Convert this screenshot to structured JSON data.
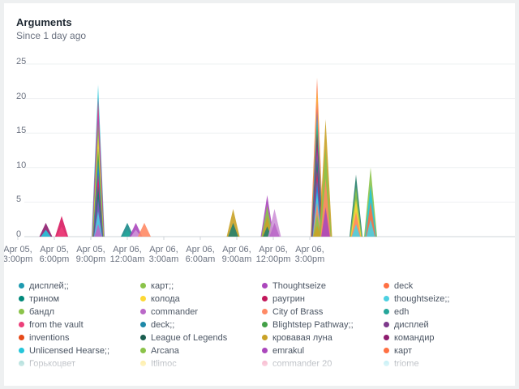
{
  "panel": {
    "title": "Arguments",
    "subtitle": "Since 1 day ago"
  },
  "chart_data": {
    "type": "area",
    "title": "Arguments",
    "subtitle": "Since 1 day ago",
    "ylim": [
      0,
      25
    ],
    "y_ticks": [
      "25",
      "20",
      "15",
      "10",
      "5",
      "0"
    ],
    "x_ticks": [
      {
        "line1": "Apr 05,",
        "line2": "3:00pm"
      },
      {
        "line1": "Apr 05,",
        "line2": "6:00pm"
      },
      {
        "line1": "Apr 05,",
        "line2": "9:00pm"
      },
      {
        "line1": "Apr 06,",
        "line2": "12:00am"
      },
      {
        "line1": "Apr 06,",
        "line2": "3:00am"
      },
      {
        "line1": "Apr 06,",
        "line2": "6:00am"
      },
      {
        "line1": "Apr 06,",
        "line2": "9:00am"
      },
      {
        "line1": "Apr 06,",
        "line2": "12:00pm"
      },
      {
        "line1": "Apr 06,",
        "line2": "3:00pm"
      }
    ],
    "grid": true,
    "peaks": [
      {
        "at_hours": 4.3,
        "total": 2,
        "colors": [
          "#8e1d6f",
          "#26c6da"
        ]
      },
      {
        "at_hours": 5.6,
        "total": 3,
        "colors": [
          "#d81b60",
          "#ec407a"
        ]
      },
      {
        "at_hours": 8.6,
        "total": 22,
        "colors": [
          "#26c6da",
          "#ec407a",
          "#ab47bc",
          "#8bc34a",
          "#fdd835",
          "#43a047",
          "#1e88e5",
          "#e91e63",
          "#00897b",
          "#7e57c2",
          "#4dd0e1",
          "#ba68c8"
        ]
      },
      {
        "at_hours": 11.0,
        "total": 2,
        "colors": [
          "#1a8a8a",
          "#26a69a"
        ]
      },
      {
        "at_hours": 11.7,
        "total": 2,
        "colors": [
          "#ab47bc",
          "#ce93d8"
        ]
      },
      {
        "at_hours": 12.4,
        "total": 2,
        "colors": [
          "#ff8a65"
        ]
      },
      {
        "at_hours": 19.7,
        "total": 4,
        "colors": [
          "#c9a227",
          "#26806b"
        ]
      },
      {
        "at_hours": 22.5,
        "total": 6,
        "colors": [
          "#ab47bc",
          "#8bc34a",
          "#c9a227",
          "#26806b"
        ]
      },
      {
        "at_hours": 23.1,
        "total": 4,
        "colors": [
          "#ce93d8",
          "#ba68c8"
        ]
      },
      {
        "at_hours": 26.6,
        "total": 23,
        "colors": [
          "#ff7043",
          "#fdd835",
          "#ec407a",
          "#26c6da",
          "#43a047",
          "#8e1d6f",
          "#ab47bc",
          "#00897b",
          "#e91e63",
          "#1e88e5",
          "#4dd0e1",
          "#ff8a65",
          "#8bc34a",
          "#c9a227"
        ]
      },
      {
        "at_hours": 27.3,
        "total": 17,
        "colors": [
          "#c9a227",
          "#8bc34a",
          "#ff8a65",
          "#ab47bc"
        ]
      },
      {
        "at_hours": 29.8,
        "total": 9,
        "colors": [
          "#26806b",
          "#8bc34a",
          "#fdd835",
          "#ff8a65",
          "#4dd0e1"
        ]
      },
      {
        "at_hours": 31.0,
        "total": 10,
        "colors": [
          "#8bc34a",
          "#26c6da",
          "#ff7043",
          "#4dd0e1"
        ]
      }
    ]
  },
  "legend": [
    {
      "label": "дисплей;;",
      "color": "#1e9ab0"
    },
    {
      "label": "карт;;",
      "color": "#8bc34a"
    },
    {
      "label": "Thoughtseize",
      "color": "#ab47bc"
    },
    {
      "label": "deck",
      "color": "#ff7043"
    },
    {
      "label": "трином",
      "color": "#00897b"
    },
    {
      "label": "колода",
      "color": "#fdd835"
    },
    {
      "label": "раугрин",
      "color": "#c2185b"
    },
    {
      "label": "thoughtseize;;",
      "color": "#4dd0e1"
    },
    {
      "label": "бандл",
      "color": "#8bc34a"
    },
    {
      "label": "commander",
      "color": "#ba68c8"
    },
    {
      "label": "City of Brass",
      "color": "#ff8a65"
    },
    {
      "label": "edh",
      "color": "#26a69a"
    },
    {
      "label": "from the vault",
      "color": "#ec407a"
    },
    {
      "label": "deck;;",
      "color": "#1e88a8"
    },
    {
      "label": "Blightstep Pathway;;",
      "color": "#43a047"
    },
    {
      "label": "дисплей",
      "color": "#7e3a8c"
    },
    {
      "label": "inventions",
      "color": "#e64a19"
    },
    {
      "label": "League of Legends",
      "color": "#1b5e50"
    },
    {
      "label": "кровавая луна",
      "color": "#c9a227"
    },
    {
      "label": "командир",
      "color": "#8e1d6f"
    },
    {
      "label": "Unlicensed Hearse;;",
      "color": "#26c6da"
    },
    {
      "label": "Arcana",
      "color": "#8bc34a"
    },
    {
      "label": "emrakul",
      "color": "#ab47bc"
    },
    {
      "label": "карт",
      "color": "#ff7043"
    },
    {
      "label": "Горькоцвет",
      "color": "#4db6ac"
    },
    {
      "label": "Itlimoc",
      "color": "#fdd835"
    },
    {
      "label": "commander 20",
      "color": "#f06292"
    },
    {
      "label": "triome",
      "color": "#80deea"
    }
  ]
}
